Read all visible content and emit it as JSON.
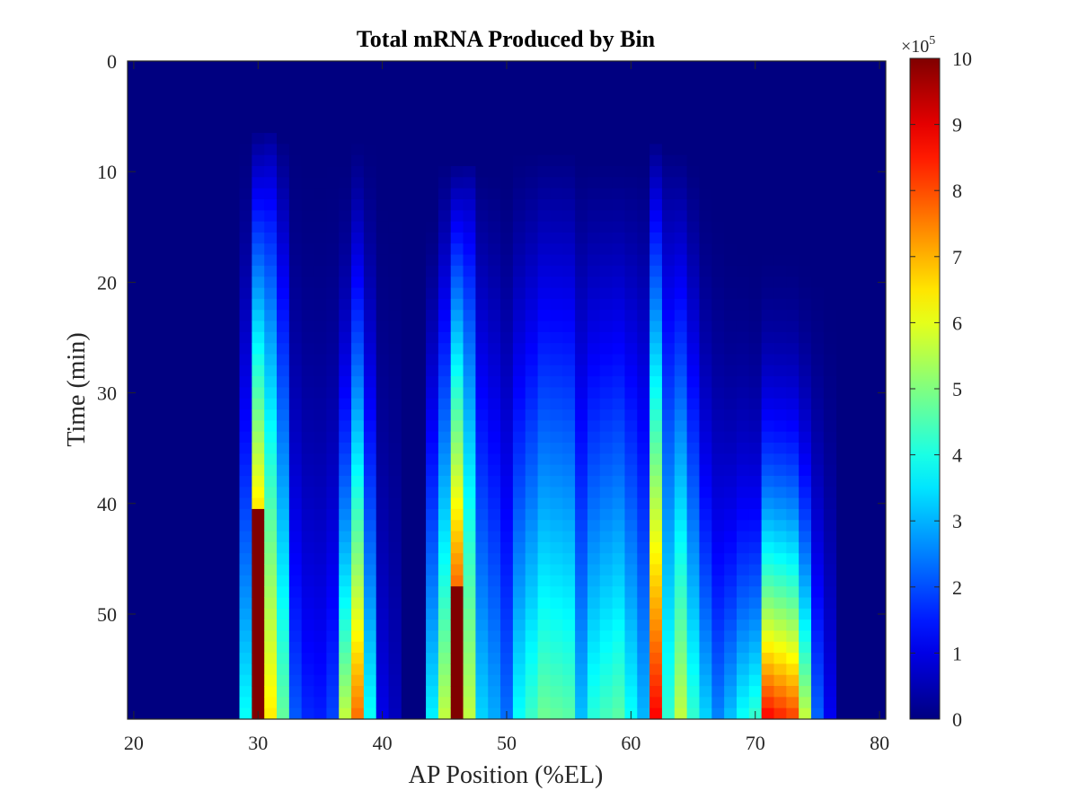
{
  "chart_data": {
    "type": "heatmap",
    "title": "Total mRNA Produced by Bin",
    "xlabel": "AP Position (%EL)",
    "ylabel": "Time (min)",
    "xlim": [
      19.5,
      80.5
    ],
    "ylim": [
      0,
      59.5
    ],
    "y_reversed": true,
    "x_ticks": [
      20,
      30,
      40,
      50,
      60,
      70,
      80
    ],
    "x_tick_labels": [
      "20",
      "30",
      "40",
      "50",
      "60",
      "70",
      "80"
    ],
    "y_ticks": [
      0,
      10,
      20,
      30,
      40,
      50
    ],
    "y_tick_labels": [
      "0",
      "10",
      "20",
      "30",
      "40",
      "50"
    ],
    "colormap": "jet",
    "colorbar": {
      "min": 0,
      "max": 1000000,
      "ticks": [
        0,
        1,
        2,
        3,
        4,
        5,
        6,
        7,
        8,
        9,
        10
      ],
      "tick_labels": [
        "0",
        "1",
        "2",
        "3",
        "4",
        "5",
        "6",
        "7",
        "8",
        "9",
        "10"
      ],
      "exponent_label": "×10",
      "exponent_power": "5"
    },
    "x_bin_start": 20,
    "x_bin_width": 1,
    "t_start": 0,
    "t_step": 1,
    "t_count": 60,
    "columns": [
      {
        "x": 29,
        "onset": 6,
        "final": 380000,
        "p": 1.6
      },
      {
        "x": 30,
        "onset": 6,
        "final": 1000000,
        "p": 1.0,
        "sat": 41
      },
      {
        "x": 31,
        "onset": 6,
        "final": 640000,
        "p": 0.8
      },
      {
        "x": 32,
        "onset": 7,
        "final": 470000,
        "p": 1.0
      },
      {
        "x": 33,
        "onset": 6,
        "final": 210000,
        "p": 1.8
      },
      {
        "x": 34,
        "onset": 6,
        "final": 160000,
        "p": 2.0
      },
      {
        "x": 35,
        "onset": 6,
        "final": 150000,
        "p": 2.0
      },
      {
        "x": 36,
        "onset": 6,
        "final": 190000,
        "p": 2.0
      },
      {
        "x": 37,
        "onset": 8,
        "final": 560000,
        "p": 1.8
      },
      {
        "x": 38,
        "onset": 7,
        "final": 760000,
        "p": 1.3
      },
      {
        "x": 39,
        "onset": 7,
        "final": 380000,
        "p": 1.5
      },
      {
        "x": 40,
        "onset": 8,
        "final": 100000,
        "p": 2.0
      },
      {
        "x": 41,
        "onset": 8,
        "final": 60000,
        "p": 2.0
      },
      {
        "x": 44,
        "onset": 14,
        "final": 360000,
        "p": 1.3
      },
      {
        "x": 45,
        "onset": 9,
        "final": 560000,
        "p": 1.2
      },
      {
        "x": 46,
        "onset": 9,
        "final": 1000000,
        "p": 1.0,
        "sat": 48
      },
      {
        "x": 47,
        "onset": 9,
        "final": 560000,
        "p": 0.8
      },
      {
        "x": 48,
        "onset": 10,
        "final": 330000,
        "p": 1.1
      },
      {
        "x": 49,
        "onset": 10,
        "final": 290000,
        "p": 1.2
      },
      {
        "x": 50,
        "onset": 11,
        "final": 230000,
        "p": 1.3
      },
      {
        "x": 51,
        "onset": 8,
        "final": 380000,
        "p": 1.3
      },
      {
        "x": 52,
        "onset": 8,
        "final": 430000,
        "p": 1.2
      },
      {
        "x": 53,
        "onset": 8,
        "final": 480000,
        "p": 1.1
      },
      {
        "x": 54,
        "onset": 8,
        "final": 470000,
        "p": 1.1
      },
      {
        "x": 55,
        "onset": 8,
        "final": 460000,
        "p": 1.1
      },
      {
        "x": 56,
        "onset": 9,
        "final": 310000,
        "p": 1.2
      },
      {
        "x": 57,
        "onset": 9,
        "final": 410000,
        "p": 1.2
      },
      {
        "x": 58,
        "onset": 9,
        "final": 440000,
        "p": 1.2
      },
      {
        "x": 59,
        "onset": 9,
        "final": 460000,
        "p": 1.2
      },
      {
        "x": 60,
        "onset": 9,
        "final": 380000,
        "p": 1.2
      },
      {
        "x": 61,
        "onset": 9,
        "final": 300000,
        "p": 1.2
      },
      {
        "x": 62,
        "onset": 7,
        "final": 870000,
        "p": 1.0
      },
      {
        "x": 63,
        "onset": 8,
        "final": 420000,
        "p": 1.0
      },
      {
        "x": 64,
        "onset": 8,
        "final": 560000,
        "p": 1.1
      },
      {
        "x": 65,
        "onset": 9,
        "final": 420000,
        "p": 1.3
      },
      {
        "x": 66,
        "onset": 10,
        "final": 330000,
        "p": 1.8
      },
      {
        "x": 67,
        "onset": 12,
        "final": 250000,
        "p": 1.9
      },
      {
        "x": 68,
        "onset": 14,
        "final": 310000,
        "p": 2.1
      },
      {
        "x": 69,
        "onset": 15,
        "final": 380000,
        "p": 2.1
      },
      {
        "x": 70,
        "onset": 16,
        "final": 420000,
        "p": 2.2
      },
      {
        "x": 71,
        "onset": 16,
        "final": 860000,
        "p": 2.0
      },
      {
        "x": 72,
        "onset": 16,
        "final": 830000,
        "p": 2.0
      },
      {
        "x": 73,
        "onset": 16,
        "final": 800000,
        "p": 2.0
      },
      {
        "x": 74,
        "onset": 17,
        "final": 560000,
        "p": 2.0
      },
      {
        "x": 75,
        "onset": 18,
        "final": 220000,
        "p": 1.8
      },
      {
        "x": 76,
        "onset": 20,
        "final": 110000,
        "p": 1.8
      }
    ]
  }
}
